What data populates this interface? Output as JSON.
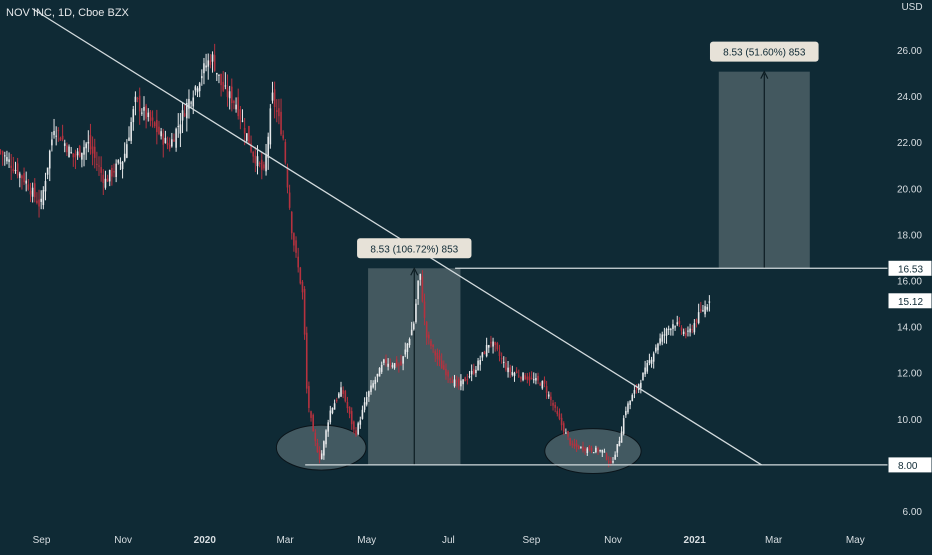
{
  "header": {
    "title": "NOV INC, 1D, Cboe BZX"
  },
  "chart_data": {
    "type": "candlestick",
    "currency_label": "USD",
    "ylim": [
      5.2,
      27.8
    ],
    "y_ticks": [
      "26.00",
      "24.00",
      "22.00",
      "20.00",
      "18.00",
      "16.00",
      "14.00",
      "12.00",
      "10.00",
      "8.00",
      "6.00"
    ],
    "x_ticks": [
      {
        "label": "Sep",
        "date": "2019-09-01",
        "bold": false
      },
      {
        "label": "Nov",
        "date": "2019-11-01",
        "bold": false
      },
      {
        "label": "2020",
        "date": "2020-01-01",
        "bold": true
      },
      {
        "label": "Mar",
        "date": "2020-03-01",
        "bold": false
      },
      {
        "label": "May",
        "date": "2020-05-01",
        "bold": false
      },
      {
        "label": "Jul",
        "date": "2020-07-01",
        "bold": false
      },
      {
        "label": "Sep",
        "date": "2020-09-01",
        "bold": false
      },
      {
        "label": "Nov",
        "date": "2020-11-01",
        "bold": false
      },
      {
        "label": "2021",
        "date": "2021-01-01",
        "bold": true
      },
      {
        "label": "Mar",
        "date": "2021-03-01",
        "bold": false
      },
      {
        "label": "May",
        "date": "2021-05-01",
        "bold": false
      }
    ],
    "price_path": [
      [
        "2019-08-01",
        21.6
      ],
      [
        "2019-08-20",
        20.3
      ],
      [
        "2019-08-31",
        19.2
      ],
      [
        "2019-09-10",
        22.7
      ],
      [
        "2019-09-25",
        21.3
      ],
      [
        "2019-10-05",
        22.0
      ],
      [
        "2019-10-18",
        20.3
      ],
      [
        "2019-11-01",
        21.3
      ],
      [
        "2019-11-10",
        23.8
      ],
      [
        "2019-11-22",
        22.8
      ],
      [
        "2019-12-05",
        21.8
      ],
      [
        "2019-12-18",
        23.6
      ],
      [
        "2020-01-01",
        25.3
      ],
      [
        "2020-01-06",
        25.7
      ],
      [
        "2020-01-14",
        24.3
      ],
      [
        "2020-01-24",
        23.7
      ],
      [
        "2020-02-05",
        21.6
      ],
      [
        "2020-02-14",
        20.6
      ],
      [
        "2020-02-20",
        24.0
      ],
      [
        "2020-02-28",
        22.3
      ],
      [
        "2020-03-06",
        18.0
      ],
      [
        "2020-03-14",
        15.3
      ],
      [
        "2020-03-17",
        11.0
      ],
      [
        "2020-03-22",
        9.2
      ],
      [
        "2020-03-27",
        8.2
      ],
      [
        "2020-04-03",
        10.3
      ],
      [
        "2020-04-12",
        11.3
      ],
      [
        "2020-04-22",
        9.3
      ],
      [
        "2020-05-01",
        11.0
      ],
      [
        "2020-05-14",
        12.5
      ],
      [
        "2020-05-26",
        12.3
      ],
      [
        "2020-06-05",
        14.2
      ],
      [
        "2020-06-09",
        16.5
      ],
      [
        "2020-06-14",
        13.6
      ],
      [
        "2020-06-25",
        12.3
      ],
      [
        "2020-07-08",
        11.4
      ],
      [
        "2020-07-20",
        12.1
      ],
      [
        "2020-08-01",
        13.4
      ],
      [
        "2020-08-14",
        12.1
      ],
      [
        "2020-08-28",
        11.8
      ],
      [
        "2020-09-10",
        11.5
      ],
      [
        "2020-09-21",
        10.0
      ],
      [
        "2020-10-01",
        8.8
      ],
      [
        "2020-10-12",
        8.7
      ],
      [
        "2020-10-24",
        8.6
      ],
      [
        "2020-10-30",
        8.0
      ],
      [
        "2020-11-05",
        9.0
      ],
      [
        "2020-11-10",
        10.4
      ],
      [
        "2020-11-24",
        12.0
      ],
      [
        "2020-12-04",
        13.3
      ],
      [
        "2020-12-16",
        14.2
      ],
      [
        "2020-12-26",
        13.6
      ],
      [
        "2021-01-06",
        14.7
      ],
      [
        "2021-01-12",
        15.12
      ]
    ],
    "trendline": [
      [
        "2019-08-25",
        27.8
      ],
      [
        "2021-02-20",
        8.0
      ]
    ],
    "horizontal_lines": [
      {
        "price": 16.53,
        "label": "16.53",
        "from": "2020-07-06"
      },
      {
        "price": 8.0,
        "label": "8.00",
        "from": "2020-03-16"
      }
    ],
    "last_price": {
      "price": 15.12,
      "label": "15.12"
    },
    "measurements": [
      {
        "from_date": "2020-05-02",
        "to_date": "2020-07-10",
        "from_price": 8.0,
        "to_price": 16.53,
        "label": "8.53 (106.72%) 853"
      },
      {
        "from_date": "2021-01-19",
        "to_date": "2021-03-28",
        "from_price": 16.53,
        "to_price": 25.06,
        "label": "8.53 (51.60%) 853"
      }
    ],
    "ellipses": [
      {
        "center_date": "2020-03-28",
        "center_price": 8.75,
        "span_days": 67,
        "span_price": 1.95
      },
      {
        "center_date": "2020-10-17",
        "center_price": 8.6,
        "span_days": 72,
        "span_price": 1.95
      }
    ],
    "colors": {
      "background": "#0f2a35",
      "bullish": "#e6e8ea",
      "bearish": "#b5323f",
      "lines": "#d2dadd",
      "box_fill": "#4c6066",
      "label_bg": "#e7e2d8",
      "label_text": "#0f2a35",
      "axis_text": "#d8dee2"
    }
  }
}
